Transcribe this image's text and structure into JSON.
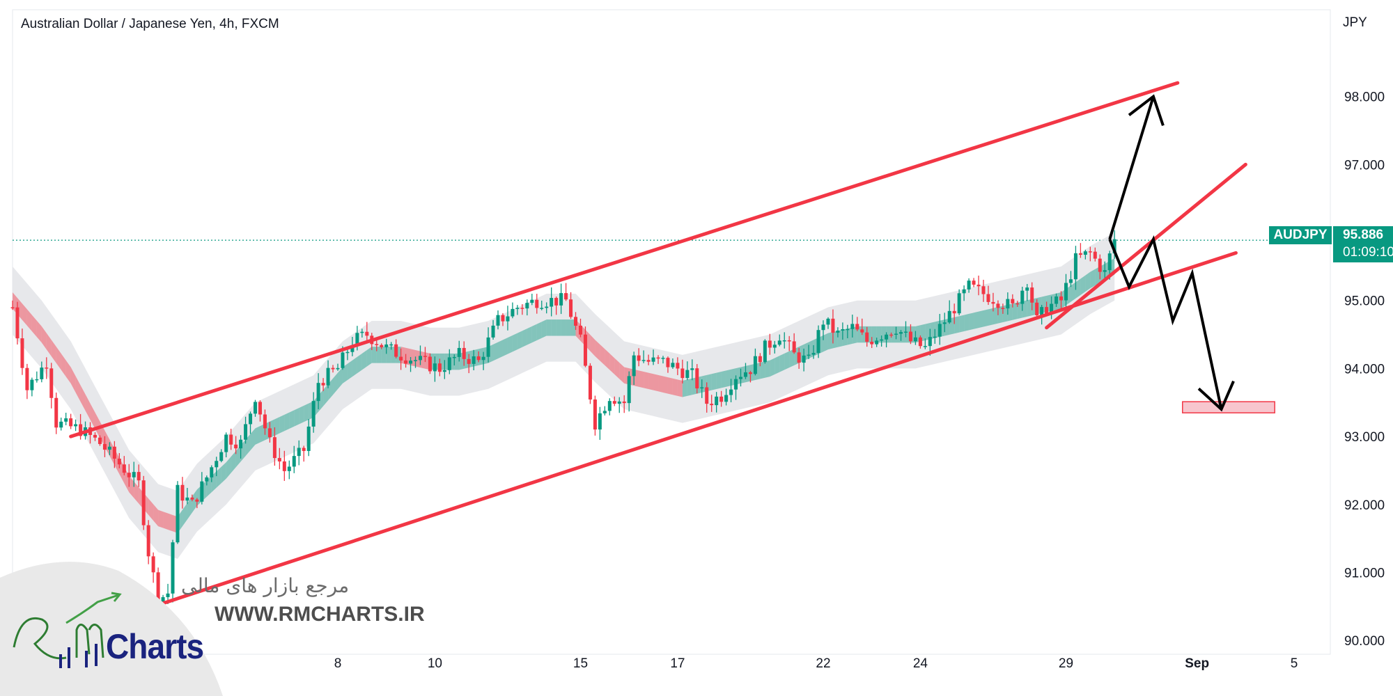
{
  "header": {
    "title": "Australian Dollar / Japanese Yen, 4h, FXCM",
    "currency": "JPY"
  },
  "price_tag": {
    "symbol": "AUDJPY",
    "price": "95.886",
    "countdown": "01:09:10"
  },
  "watermark": {
    "persian": "مرجع بازار های مالی",
    "url": "WWW.RMCHARTS.IR",
    "logo": "Charts"
  },
  "colors": {
    "bull": "#089981",
    "bear": "#f23645",
    "channel": "#f23645",
    "projection": "#000000",
    "target_zone": "#f7c6ce"
  },
  "chart_data": {
    "type": "candlestick",
    "title": "Australian Dollar / Japanese Yen, 4h, FXCM",
    "symbol": "AUDJPY",
    "interval": "4h",
    "source": "FXCM",
    "ylabel": "JPY",
    "ylim": [
      89.8,
      100.2
    ],
    "y_ticks": [
      "98.000",
      "97.000",
      "96.000",
      "95.000",
      "94.000",
      "93.000",
      "92.000",
      "91.000",
      "90.000"
    ],
    "x_ticks": [
      "8",
      "10",
      "15",
      "17",
      "22",
      "24",
      "29",
      "Sep",
      "5"
    ],
    "last_price": 95.886,
    "bar_range": [
      0,
      236
    ],
    "x_tick_bars": [
      67,
      87,
      117,
      137,
      167,
      187,
      217,
      244,
      264
    ],
    "candle_bars": [
      0,
      227
    ],
    "candle_anchors": [
      [
        0,
        94.9
      ],
      [
        3,
        93.7
      ],
      [
        7,
        94.1
      ],
      [
        9,
        93.2
      ],
      [
        14,
        93.1
      ],
      [
        18,
        92.9
      ],
      [
        22,
        92.6
      ],
      [
        26,
        92.3
      ],
      [
        28,
        91.3
      ],
      [
        30,
        90.6
      ],
      [
        32,
        90.7
      ],
      [
        34,
        92.2
      ],
      [
        37,
        92.0
      ],
      [
        40,
        92.4
      ],
      [
        44,
        93.0
      ],
      [
        47,
        92.9
      ],
      [
        50,
        93.6
      ],
      [
        53,
        92.9
      ],
      [
        56,
        92.5
      ],
      [
        60,
        92.8
      ],
      [
        63,
        93.8
      ],
      [
        67,
        94.0
      ],
      [
        70,
        94.4
      ],
      [
        73,
        94.5
      ],
      [
        77,
        94.3
      ],
      [
        80,
        94.2
      ],
      [
        84,
        94.1
      ],
      [
        88,
        94.0
      ],
      [
        92,
        94.2
      ],
      [
        96,
        94.1
      ],
      [
        100,
        94.7
      ],
      [
        104,
        94.9
      ],
      [
        108,
        95.0
      ],
      [
        112,
        95.0
      ],
      [
        114,
        95.0
      ],
      [
        117,
        94.4
      ],
      [
        120,
        93.2
      ],
      [
        123,
        93.6
      ],
      [
        126,
        93.5
      ],
      [
        128,
        94.2
      ],
      [
        131,
        94.1
      ],
      [
        134,
        94.1
      ],
      [
        137,
        94.0
      ],
      [
        140,
        93.9
      ],
      [
        143,
        93.5
      ],
      [
        146,
        93.6
      ],
      [
        149,
        93.9
      ],
      [
        152,
        94.0
      ],
      [
        155,
        94.3
      ],
      [
        158,
        94.5
      ],
      [
        161,
        94.2
      ],
      [
        164,
        94.1
      ],
      [
        167,
        94.7
      ],
      [
        170,
        94.5
      ],
      [
        173,
        94.6
      ],
      [
        176,
        94.4
      ],
      [
        179,
        94.5
      ],
      [
        182,
        94.6
      ],
      [
        185,
        94.4
      ],
      [
        188,
        94.3
      ],
      [
        191,
        94.6
      ],
      [
        194,
        94.9
      ],
      [
        197,
        95.2
      ],
      [
        200,
        95.1
      ],
      [
        203,
        95.0
      ],
      [
        206,
        94.9
      ],
      [
        209,
        95.3
      ],
      [
        211,
        94.7
      ],
      [
        213,
        94.9
      ],
      [
        216,
        95.0
      ],
      [
        219,
        95.6
      ],
      [
        222,
        95.7
      ],
      [
        225,
        95.4
      ],
      [
        227,
        95.9
      ]
    ],
    "ma_band": [
      [
        0,
        95.0
      ],
      [
        6,
        94.5
      ],
      [
        12,
        93.9
      ],
      [
        18,
        93.1
      ],
      [
        24,
        92.3
      ],
      [
        30,
        91.8
      ],
      [
        34,
        91.7
      ],
      [
        38,
        92.1
      ],
      [
        44,
        92.5
      ],
      [
        50,
        93.0
      ],
      [
        56,
        93.2
      ],
      [
        62,
        93.4
      ],
      [
        68,
        93.9
      ],
      [
        74,
        94.2
      ],
      [
        80,
        94.2
      ],
      [
        86,
        94.1
      ],
      [
        92,
        94.1
      ],
      [
        98,
        94.2
      ],
      [
        104,
        94.4
      ],
      [
        110,
        94.6
      ],
      [
        116,
        94.6
      ],
      [
        120,
        94.3
      ],
      [
        126,
        93.9
      ],
      [
        132,
        93.8
      ],
      [
        138,
        93.7
      ],
      [
        144,
        93.8
      ],
      [
        150,
        93.9
      ],
      [
        156,
        94.0
      ],
      [
        162,
        94.2
      ],
      [
        168,
        94.4
      ],
      [
        174,
        94.5
      ],
      [
        180,
        94.5
      ],
      [
        186,
        94.5
      ],
      [
        192,
        94.6
      ],
      [
        198,
        94.7
      ],
      [
        204,
        94.8
      ],
      [
        210,
        94.9
      ],
      [
        216,
        95.0
      ],
      [
        222,
        95.3
      ],
      [
        227,
        95.5
      ]
    ],
    "channel": [
      {
        "name": "upper",
        "points": [
          [
            12,
            93.0
          ],
          [
            240,
            98.2
          ]
        ]
      },
      {
        "name": "lower",
        "points": [
          [
            29,
            90.5
          ],
          [
            252,
            95.7
          ]
        ]
      },
      {
        "name": "inner",
        "points": [
          [
            213,
            94.6
          ],
          [
            254,
            97.0
          ]
        ]
      }
    ],
    "projections": [
      {
        "name": "bullish",
        "points": [
          [
            226,
            95.9
          ],
          [
            235,
            98.0
          ]
        ]
      },
      {
        "name": "bearish",
        "points": [
          [
            226,
            95.9
          ],
          [
            230,
            95.2
          ],
          [
            235,
            95.9
          ],
          [
            239,
            94.7
          ],
          [
            243,
            95.4
          ],
          [
            249,
            93.4
          ]
        ]
      }
    ],
    "target_zone": {
      "x": [
        241,
        260
      ],
      "y": [
        93.3,
        93.45
      ]
    }
  }
}
